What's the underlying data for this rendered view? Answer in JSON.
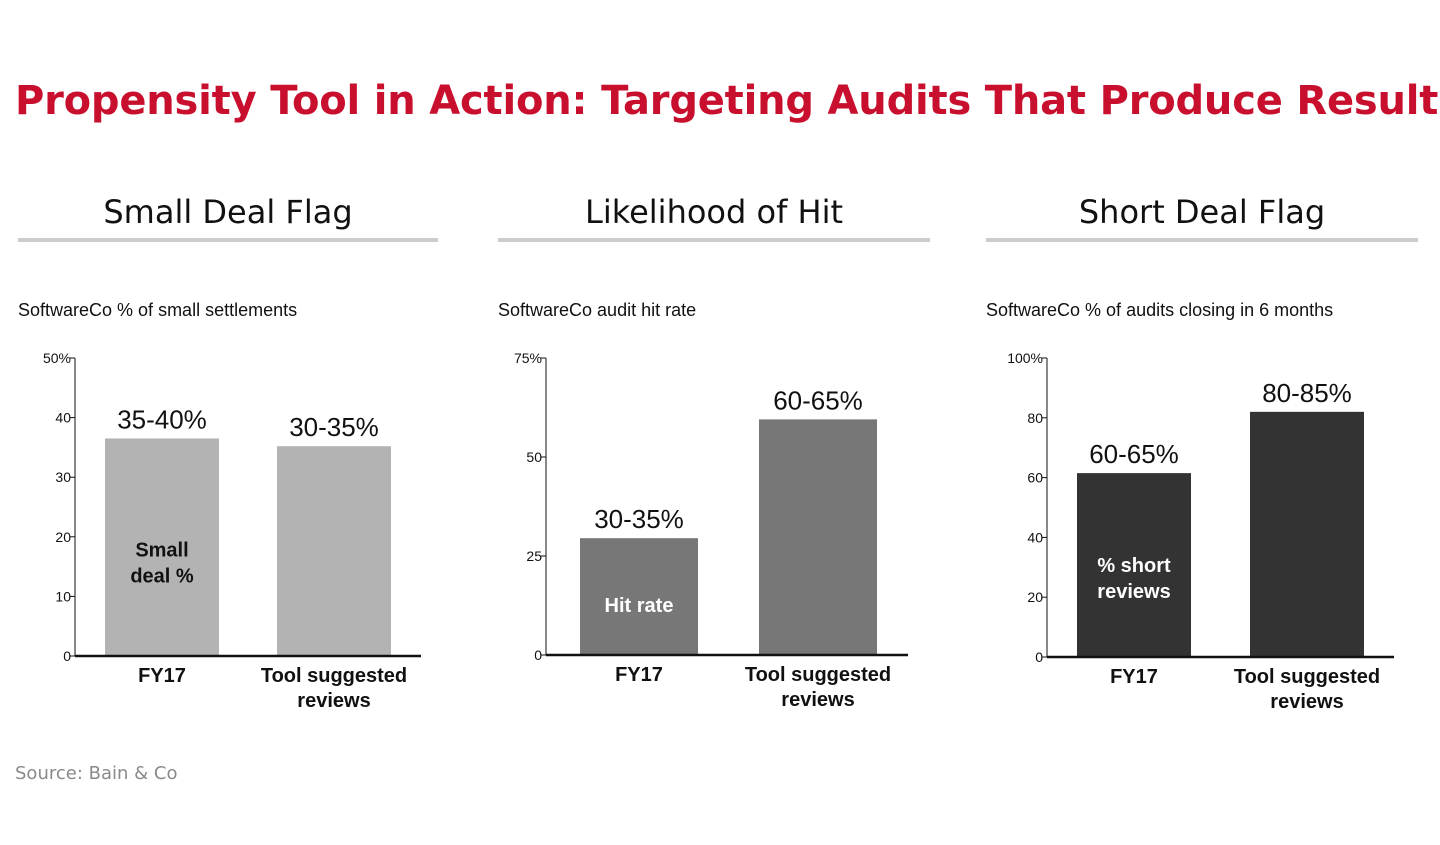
{
  "title": "Propensity Tool in Action: Targeting Audits That Produce Results",
  "source": "Source: Bain & Co",
  "chart_data": [
    {
      "type": "bar",
      "heading": "Small Deal Flag",
      "subtitle": "SoftwareCo % of small settlements",
      "categories": [
        "FY17",
        "Tool suggested reviews"
      ],
      "category_lines": [
        [
          "FY17"
        ],
        [
          "Tool suggested",
          "reviews"
        ]
      ],
      "values": [
        36.5,
        35.2
      ],
      "value_labels": [
        "35-40%",
        "30-35%"
      ],
      "inner_label": [
        "Small",
        "deal %"
      ],
      "ylim": [
        0,
        50
      ],
      "ticks": [
        0,
        10,
        20,
        30,
        40,
        50
      ],
      "tick_labels": [
        "0",
        "10",
        "20",
        "30",
        "40",
        "50%"
      ],
      "bar_color": "#b3b3b3",
      "inner_label_color": "#111111"
    },
    {
      "type": "bar",
      "heading": "Likelihood of Hit",
      "subtitle": "SoftwareCo audit hit rate",
      "categories": [
        "FY17",
        "Tool suggested reviews"
      ],
      "category_lines": [
        [
          "FY17"
        ],
        [
          "Tool suggested",
          "reviews"
        ]
      ],
      "values": [
        29.5,
        59.5
      ],
      "value_labels": [
        "30-35%",
        "60-65%"
      ],
      "inner_label": [
        "Hit rate"
      ],
      "ylim": [
        0,
        75
      ],
      "ticks": [
        0,
        25,
        50,
        75
      ],
      "tick_labels": [
        "0",
        "25",
        "50",
        "75%"
      ],
      "bar_color": "#777777",
      "inner_label_color": "#ffffff"
    },
    {
      "type": "bar",
      "heading": "Short Deal Flag",
      "subtitle": "SoftwareCo % of audits closing in 6 months",
      "categories": [
        "FY17",
        "Tool suggested reviews"
      ],
      "category_lines": [
        [
          "FY17"
        ],
        [
          "Tool suggested",
          "reviews"
        ]
      ],
      "values": [
        61.5,
        82
      ],
      "value_labels": [
        "60-65%",
        "80-85%"
      ],
      "inner_label": [
        "% short",
        "reviews"
      ],
      "ylim": [
        0,
        100
      ],
      "ticks": [
        0,
        20,
        40,
        60,
        80,
        100
      ],
      "tick_labels": [
        "0",
        "20",
        "40",
        "60",
        "80",
        "100%"
      ],
      "bar_color": "#333333",
      "inner_label_color": "#ffffff"
    }
  ]
}
